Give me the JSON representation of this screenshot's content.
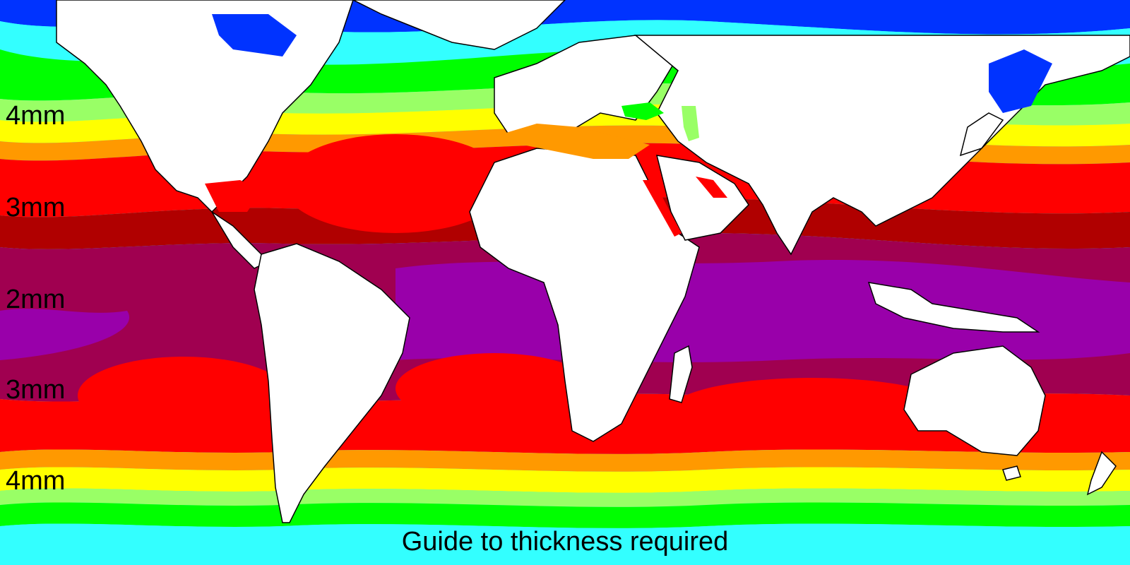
{
  "title": "Guide to thickness required",
  "latitude_labels": [
    "4mm",
    "3mm",
    "2mm",
    "3mm",
    "4mm"
  ],
  "color_scale": {
    "ice_blue": "#0033ff",
    "cyan": "#33ffff",
    "light_cyan": "#66ddff",
    "green": "#00ff00",
    "light_green": "#99ff66",
    "yellow": "#ffff00",
    "orange": "#ff9900",
    "red": "#ff0000",
    "dark_red": "#b00000",
    "crimson": "#a00050",
    "purple": "#9900aa",
    "magenta": "#ff00ff"
  },
  "land_color": "#ffffff",
  "border_color": "#000000"
}
